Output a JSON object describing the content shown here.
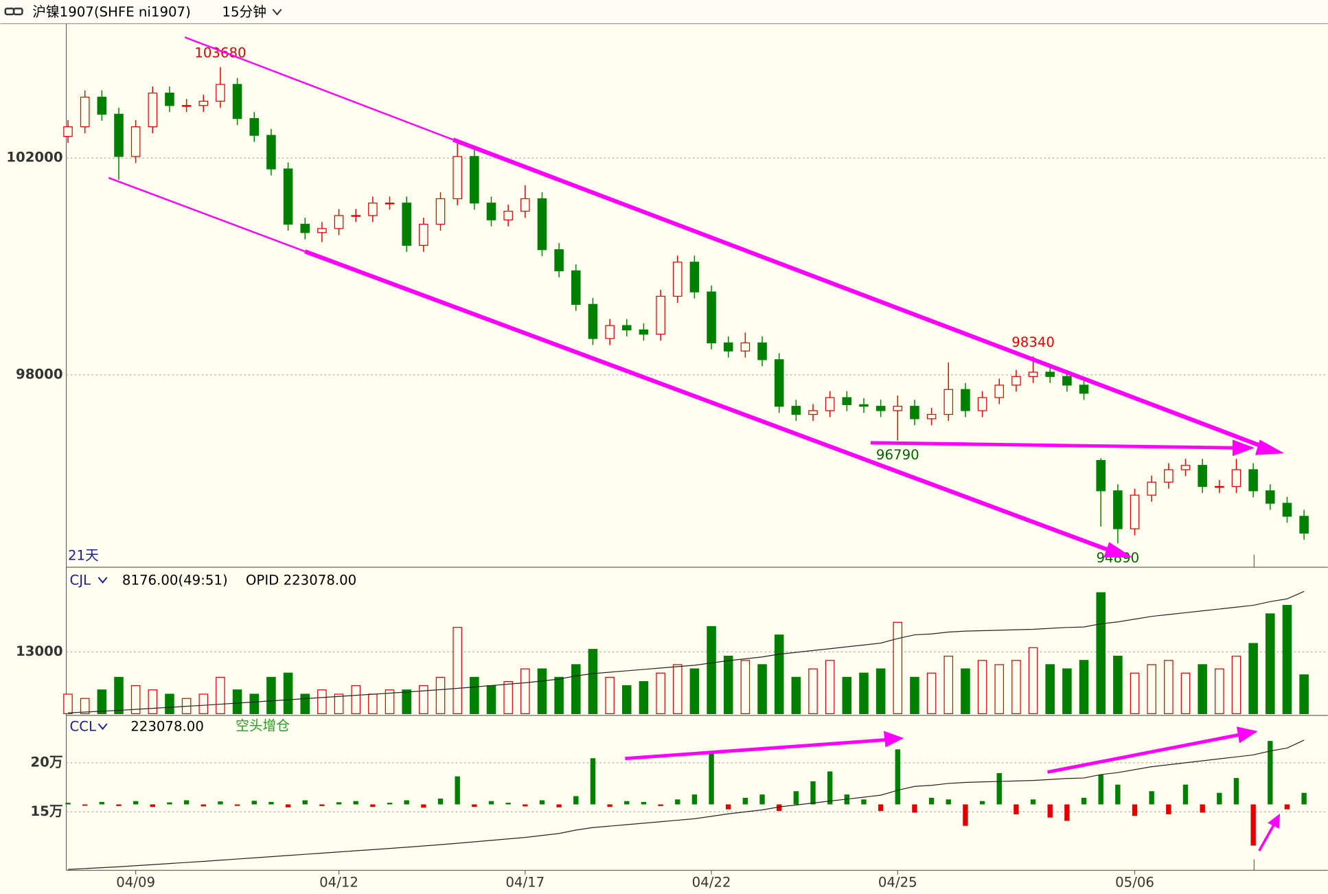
{
  "header": {
    "title": "沪镍1907(SHFE ni1907)",
    "period": "15分钟"
  },
  "chart_data": [
    {
      "type": "candlestick",
      "label": "21天",
      "categories": [
        null,
        null,
        null,
        null,
        "04/09",
        null,
        null,
        null,
        null,
        null,
        null,
        null,
        null,
        null,
        null,
        null,
        "04/12",
        null,
        null,
        null,
        null,
        null,
        null,
        null,
        null,
        null,
        null,
        "04/17",
        null,
        null,
        null,
        null,
        null,
        null,
        null,
        null,
        null,
        null,
        "04/22",
        null,
        null,
        null,
        null,
        null,
        null,
        null,
        null,
        null,
        null,
        "04/25",
        null,
        null,
        null,
        null,
        null,
        null,
        null,
        null,
        null,
        null,
        null,
        null,
        null,
        "05/06",
        null,
        null,
        null,
        null,
        null,
        null,
        null,
        null,
        null,
        null
      ],
      "open": [
        102400,
        102578,
        103125,
        102810,
        102030,
        102578,
        103200,
        102970,
        102970,
        103050,
        103360,
        102730,
        102420,
        101800,
        100780,
        100625,
        100700,
        100940,
        100940,
        101170,
        101170,
        100390,
        100780,
        101250,
        102030,
        101170,
        100860,
        101020,
        101250,
        100310,
        99920,
        99300,
        98670,
        98910,
        98830,
        98750,
        99450,
        100080,
        99530,
        98590,
        98440,
        98590,
        98280,
        97420,
        97270,
        97340,
        97580,
        97450,
        97420,
        97340,
        97420,
        97190,
        97270,
        97730,
        97340,
        97580,
        97810,
        97970,
        98050,
        97970,
        97810,
        96420,
        95860,
        95160,
        95780,
        96020,
        96250,
        96330,
        95940,
        95940,
        96250,
        95860,
        95630,
        95390
      ],
      "high": [
        102700,
        103250,
        103250,
        102930,
        102700,
        103320,
        103320,
        103090,
        103170,
        103680,
        103480,
        102850,
        102540,
        101920,
        100900,
        100820,
        101060,
        101060,
        101290,
        101290,
        101290,
        100900,
        101370,
        102300,
        102150,
        101290,
        101140,
        101500,
        101370,
        100430,
        100040,
        99420,
        99030,
        99030,
        98950,
        99570,
        100200,
        100200,
        99650,
        98710,
        98780,
        98710,
        98400,
        97540,
        97460,
        97700,
        97700,
        97570,
        97540,
        97620,
        97540,
        97390,
        98230,
        97850,
        97700,
        97930,
        98090,
        98340,
        98170,
        98090,
        97930,
        96460,
        95980,
        95900,
        96140,
        96370,
        96450,
        96450,
        96060,
        96450,
        96370,
        95980,
        95750,
        95510
      ],
      "low": [
        102280,
        102460,
        102690,
        101600,
        101910,
        102460,
        102850,
        102850,
        102850,
        102930,
        102610,
        102300,
        101680,
        100660,
        100500,
        100450,
        100580,
        100820,
        100820,
        101050,
        100270,
        100270,
        100660,
        101130,
        101050,
        100740,
        100740,
        100900,
        100190,
        99800,
        99180,
        98550,
        98550,
        98710,
        98630,
        98630,
        99330,
        99410,
        98470,
        98320,
        98320,
        98160,
        97300,
        97150,
        97150,
        97220,
        97330,
        97300,
        97220,
        96790,
        97070,
        97070,
        97150,
        97220,
        97220,
        97460,
        97690,
        97850,
        97850,
        97690,
        97540,
        95200,
        94890,
        95040,
        95660,
        95900,
        96130,
        95820,
        95820,
        95820,
        95740,
        95510,
        95270,
        94960
      ],
      "close": [
        102578,
        103125,
        102810,
        102030,
        102578,
        103200,
        102970,
        102970,
        103050,
        103360,
        102730,
        102420,
        101800,
        100780,
        100625,
        100700,
        100940,
        100940,
        101170,
        101170,
        100390,
        100780,
        101250,
        102030,
        101170,
        100860,
        101020,
        101250,
        100310,
        99920,
        99300,
        98670,
        98910,
        98830,
        98750,
        99450,
        100080,
        99530,
        98590,
        98440,
        98590,
        98280,
        97420,
        97270,
        97340,
        97580,
        97450,
        97420,
        97340,
        97420,
        97190,
        97270,
        97730,
        97340,
        97580,
        97810,
        97970,
        98050,
        97970,
        97810,
        97660,
        95860,
        95160,
        95780,
        96020,
        96250,
        96330,
        95940,
        95940,
        96250,
        95860,
        95630,
        95390,
        95080
      ],
      "annotations": [
        "103680",
        "98340",
        "96790",
        "94890"
      ],
      "ylim": [
        94450,
        104480
      ],
      "yticks": [
        98000,
        102000
      ],
      "grid": true,
      "up_color": "#e00000",
      "down_color": "#008000"
    },
    {
      "type": "bar",
      "indicator": "CJL",
      "readout": "8176.00(49:51)",
      "readout2": "OPID 223078.00",
      "values": [
        4100,
        3200,
        5000,
        7650,
        5900,
        5000,
        4100,
        3200,
        4100,
        7650,
        5000,
        4100,
        7650,
        8540,
        4100,
        5000,
        4100,
        5900,
        4100,
        5000,
        5000,
        5900,
        7650,
        18160,
        7650,
        5900,
        6760,
        9430,
        9430,
        7650,
        10320,
        13530,
        7650,
        5900,
        6760,
        8540,
        10320,
        9430,
        18330,
        12100,
        11210,
        10320,
        16550,
        7650,
        9430,
        11210,
        7650,
        8540,
        9430,
        19220,
        7650,
        8540,
        12100,
        9430,
        11210,
        10320,
        11210,
        13880,
        10320,
        9430,
        11210,
        25450,
        12100,
        8540,
        10320,
        11210,
        8540,
        10320,
        9430,
        12100,
        14770,
        21000,
        22780,
        8176
      ],
      "ylim": [
        0,
        30270
      ],
      "yticks": [
        13000
      ],
      "grid": true
    },
    {
      "type": "open_interest",
      "indicator": "CCL",
      "readout": "223078.00",
      "note": "空头增仓",
      "open_interest": [
        91400,
        92300,
        93200,
        94100,
        95200,
        96300,
        97400,
        98500,
        99600,
        100800,
        102000,
        103200,
        104400,
        105600,
        106800,
        108000,
        109200,
        110400,
        111600,
        112800,
        114000,
        115300,
        116600,
        118000,
        119500,
        121000,
        122500,
        124000,
        126000,
        128000,
        131500,
        134000,
        135500,
        137000,
        138500,
        140000,
        141500,
        143000,
        145500,
        148000,
        150000,
        152000,
        155000,
        157000,
        159000,
        161000,
        163000,
        165000,
        167000,
        172000,
        176000,
        177000,
        179000,
        180000,
        180500,
        181000,
        181500,
        182000,
        183000,
        184000,
        184500,
        188000,
        190000,
        193000,
        196000,
        198000,
        200000,
        202000,
        204000,
        206000,
        208000,
        212000,
        215000,
        223078
      ],
      "oi_change": [
        1000,
        -800,
        1500,
        -1000,
        2000,
        -1500,
        1200,
        2500,
        -1200,
        1800,
        -900,
        2200,
        1500,
        -1800,
        2500,
        -1000,
        1300,
        2000,
        -1500,
        1000,
        2500,
        -2000,
        3500,
        17000,
        -1500,
        2000,
        1000,
        -1200,
        2500,
        -1800,
        5000,
        28000,
        -1500,
        2000,
        1500,
        -1000,
        3000,
        6000,
        31000,
        -3000,
        4000,
        6000,
        -4000,
        8000,
        14000,
        20000,
        6000,
        3000,
        -4000,
        33400,
        -5000,
        4000,
        3000,
        -13000,
        2000,
        19000,
        -6000,
        3000,
        -8000,
        -10000,
        4000,
        18000,
        12000,
        -7000,
        8000,
        -6000,
        12000,
        -5000,
        7000,
        16000,
        -25000,
        38500,
        -3000,
        7000
      ],
      "ylim": [
        90520,
        246550
      ],
      "yticks": [
        {
          "value": 150000,
          "label": "15万"
        },
        {
          "value": 200000,
          "label": "20万"
        }
      ],
      "y2lim": [
        -40000,
        53000
      ],
      "grid": true,
      "up_color": "#008000",
      "down_color": "#e00000"
    }
  ]
}
